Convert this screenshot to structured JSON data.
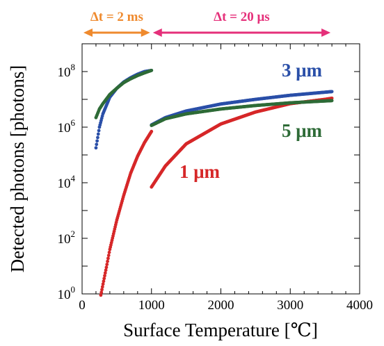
{
  "chart_data": {
    "type": "scatter",
    "xlabel": "Surface Temperature [℃]",
    "ylabel": "Detected photons [photons]",
    "xlim": [
      0,
      4000
    ],
    "ylim_log10": [
      0,
      9
    ],
    "y_scale": "log",
    "x_ticks": [
      "0",
      "1000",
      "2000",
      "3000",
      "4000"
    ],
    "y_ticks": [
      {
        "base": "10",
        "exp": "0",
        "value": 1
      },
      {
        "base": "10",
        "exp": "2",
        "value": 100
      },
      {
        "base": "10",
        "exp": "4",
        "value": 10000
      },
      {
        "base": "10",
        "exp": "6",
        "value": 1000000
      },
      {
        "base": "10",
        "exp": "8",
        "value": 100000000
      }
    ],
    "grid": false,
    "annotations": [
      {
        "text": "Δt = 2 ms",
        "color": "#ef8a2e",
        "x_range": [
          0,
          1000
        ]
      },
      {
        "text": "Δt = 20 μs",
        "color": "#e5307a",
        "x_range": [
          1000,
          3600
        ]
      }
    ],
    "series": [
      {
        "name": "1 μm",
        "color": "#d62728",
        "segments": [
          {
            "x": [
              270,
              350,
              400,
              500,
              600,
              700,
              800,
              900,
              1000
            ],
            "y": [
              0.9,
              9,
              40,
              450,
              3500,
              22000,
              90000,
              280000,
              700000
            ]
          },
          {
            "x": [
              1000,
              1200,
              1500,
              2000,
              2500,
              3000,
              3500,
              3600
            ],
            "y": [
              7000,
              40000,
              250000,
              1300000,
              3500000,
              7000000,
              10000000,
              11000000
            ]
          }
        ]
      },
      {
        "name": "3 μm",
        "color": "#2a4fa8",
        "segments": [
          {
            "x": [
              200,
              250,
              300,
              400,
              500,
              600,
              700,
              800,
              900,
              1000
            ],
            "y": [
              180000,
              1000000,
              3000000,
              12000000,
              25000000,
              42000000,
              60000000,
              80000000,
              100000000,
              110000000
            ]
          },
          {
            "x": [
              1000,
              1200,
              1500,
              2000,
              2500,
              3000,
              3600
            ],
            "y": [
              1200000,
              2200000,
              3800000,
              6800000,
              10000000,
              14000000,
              19000000
            ]
          }
        ]
      },
      {
        "name": "5 μm",
        "color": "#2e6b37",
        "segments": [
          {
            "x": [
              200,
              250,
              300,
              400,
              500,
              600,
              700,
              800,
              900,
              1000
            ],
            "y": [
              2200000,
              4500000,
              7000000,
              15000000,
              25000000,
              40000000,
              55000000,
              72000000,
              90000000,
              110000000
            ]
          },
          {
            "x": [
              1000,
              1200,
              1500,
              2000,
              2500,
              3000,
              3600
            ],
            "y": [
              1150000,
              2000000,
              3000000,
              4500000,
              6000000,
              7500000,
              9000000
            ]
          }
        ]
      }
    ]
  }
}
